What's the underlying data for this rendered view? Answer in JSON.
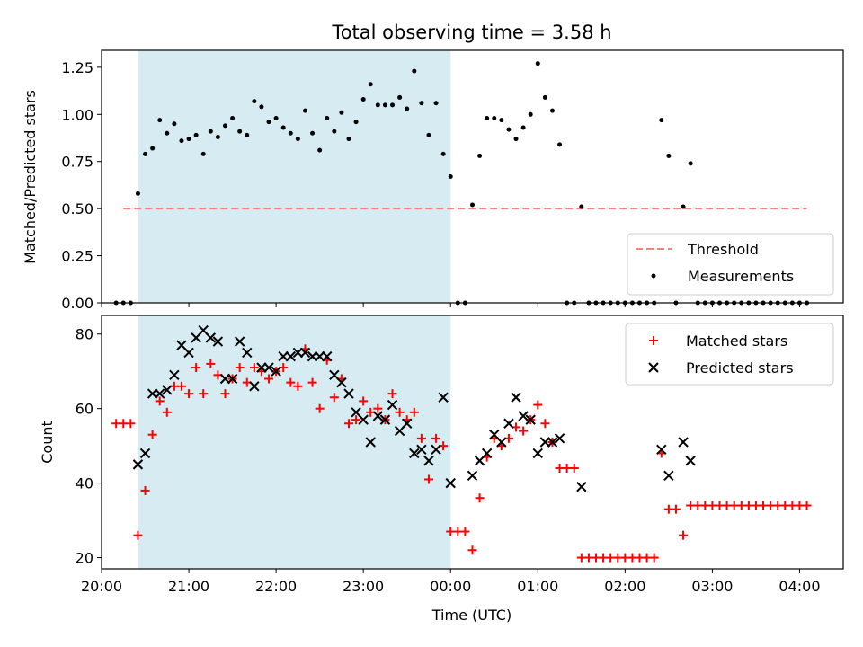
{
  "chart_data": [
    {
      "type": "scatter",
      "title": "Total observing time = 3.58 h",
      "ylabel": "Matched/Predicted stars",
      "ylim": [
        0,
        1.34
      ],
      "yticks": [
        "0.00",
        "0.25",
        "0.50",
        "0.75",
        "1.00",
        "1.25"
      ],
      "xlim": [
        "20:00",
        "04:30"
      ],
      "highlight_span": [
        "20:25",
        "00:00"
      ],
      "threshold": {
        "name": "Threshold",
        "value": 0.5,
        "x_range": [
          "20:15",
          "04:05"
        ],
        "color": "#ff7f7f"
      },
      "legend_position": "lower right",
      "series": [
        {
          "name": "Measurements",
          "color": "#000000",
          "points": [
            [
              "20:10",
              0.0
            ],
            [
              "20:15",
              0.0
            ],
            [
              "20:20",
              0.0
            ],
            [
              "20:25",
              0.58
            ],
            [
              "20:30",
              0.79
            ],
            [
              "20:35",
              0.82
            ],
            [
              "20:40",
              0.97
            ],
            [
              "20:45",
              0.9
            ],
            [
              "20:50",
              0.95
            ],
            [
              "20:55",
              0.86
            ],
            [
              "21:00",
              0.87
            ],
            [
              "21:05",
              0.89
            ],
            [
              "21:10",
              0.79
            ],
            [
              "21:15",
              0.91
            ],
            [
              "21:20",
              0.88
            ],
            [
              "21:25",
              0.94
            ],
            [
              "21:30",
              0.98
            ],
            [
              "21:35",
              0.91
            ],
            [
              "21:40",
              0.89
            ],
            [
              "21:45",
              1.07
            ],
            [
              "21:50",
              1.04
            ],
            [
              "21:55",
              0.96
            ],
            [
              "22:00",
              0.98
            ],
            [
              "22:05",
              0.93
            ],
            [
              "22:10",
              0.9
            ],
            [
              "22:15",
              0.87
            ],
            [
              "22:20",
              1.02
            ],
            [
              "22:25",
              0.9
            ],
            [
              "22:30",
              0.81
            ],
            [
              "22:35",
              0.98
            ],
            [
              "22:40",
              0.91
            ],
            [
              "22:45",
              1.01
            ],
            [
              "22:50",
              0.87
            ],
            [
              "22:55",
              0.96
            ],
            [
              "23:00",
              1.08
            ],
            [
              "23:05",
              1.16
            ],
            [
              "23:10",
              1.05
            ],
            [
              "23:15",
              1.05
            ],
            [
              "23:20",
              1.05
            ],
            [
              "23:25",
              1.09
            ],
            [
              "23:30",
              1.03
            ],
            [
              "23:35",
              1.23
            ],
            [
              "23:40",
              1.06
            ],
            [
              "23:45",
              0.89
            ],
            [
              "23:50",
              1.06
            ],
            [
              "23:55",
              0.79
            ],
            [
              "00:00",
              0.67
            ],
            [
              "00:05",
              0.0
            ],
            [
              "00:10",
              0.0
            ],
            [
              "00:15",
              0.52
            ],
            [
              "00:20",
              0.78
            ],
            [
              "00:25",
              0.98
            ],
            [
              "00:30",
              0.98
            ],
            [
              "00:35",
              0.97
            ],
            [
              "00:40",
              0.92
            ],
            [
              "00:45",
              0.87
            ],
            [
              "00:50",
              0.93
            ],
            [
              "00:55",
              1.0
            ],
            [
              "01:00",
              1.27
            ],
            [
              "01:05",
              1.09
            ],
            [
              "01:10",
              1.02
            ],
            [
              "01:15",
              0.84
            ],
            [
              "01:20",
              0.0
            ],
            [
              "01:25",
              0.0
            ],
            [
              "01:30",
              0.51
            ],
            [
              "01:35",
              0.0
            ],
            [
              "01:40",
              0.0
            ],
            [
              "01:45",
              0.0
            ],
            [
              "01:50",
              0.0
            ],
            [
              "01:55",
              0.0
            ],
            [
              "02:00",
              0.0
            ],
            [
              "02:05",
              0.0
            ],
            [
              "02:10",
              0.0
            ],
            [
              "02:15",
              0.0
            ],
            [
              "02:20",
              0.0
            ],
            [
              "02:25",
              0.97
            ],
            [
              "02:30",
              0.78
            ],
            [
              "02:35",
              0.0
            ],
            [
              "02:40",
              0.51
            ],
            [
              "02:45",
              0.74
            ],
            [
              "02:50",
              0.0
            ],
            [
              "02:55",
              0.0
            ],
            [
              "03:00",
              0.0
            ],
            [
              "03:05",
              0.0
            ],
            [
              "03:10",
              0.0
            ],
            [
              "03:15",
              0.0
            ],
            [
              "03:20",
              0.0
            ],
            [
              "03:25",
              0.0
            ],
            [
              "03:30",
              0.0
            ],
            [
              "03:35",
              0.0
            ],
            [
              "03:40",
              0.0
            ],
            [
              "03:45",
              0.0
            ],
            [
              "03:50",
              0.0
            ],
            [
              "03:55",
              0.0
            ],
            [
              "04:00",
              0.0
            ],
            [
              "04:05",
              0.0
            ]
          ]
        }
      ]
    },
    {
      "type": "scatter",
      "ylabel": "Count",
      "xlabel": "Time (UTC)",
      "ylim": [
        17,
        85
      ],
      "yticks": [
        "20",
        "40",
        "60",
        "80"
      ],
      "xlim": [
        "20:00",
        "04:30"
      ],
      "xticks": [
        "20:00",
        "21:00",
        "22:00",
        "23:00",
        "00:00",
        "01:00",
        "02:00",
        "03:00",
        "04:00"
      ],
      "highlight_span": [
        "20:25",
        "00:00"
      ],
      "legend_position": "upper right",
      "series": [
        {
          "name": "Matched stars",
          "marker": "+",
          "color": "#ff0000",
          "points": [
            [
              "20:10",
              56
            ],
            [
              "20:15",
              56
            ],
            [
              "20:20",
              56
            ],
            [
              "20:25",
              26
            ],
            [
              "20:30",
              38
            ],
            [
              "20:35",
              53
            ],
            [
              "20:40",
              62
            ],
            [
              "20:45",
              59
            ],
            [
              "20:50",
              66
            ],
            [
              "20:55",
              66
            ],
            [
              "21:00",
              64
            ],
            [
              "21:05",
              71
            ],
            [
              "21:10",
              64
            ],
            [
              "21:15",
              72
            ],
            [
              "21:20",
              69
            ],
            [
              "21:25",
              64
            ],
            [
              "21:30",
              68
            ],
            [
              "21:35",
              71
            ],
            [
              "21:40",
              67
            ],
            [
              "21:45",
              71
            ],
            [
              "21:50",
              70
            ],
            [
              "21:55",
              68
            ],
            [
              "22:00",
              70
            ],
            [
              "22:05",
              71
            ],
            [
              "22:10",
              67
            ],
            [
              "22:15",
              66
            ],
            [
              "22:20",
              76
            ],
            [
              "22:25",
              67
            ],
            [
              "22:30",
              60
            ],
            [
              "22:35",
              73
            ],
            [
              "22:40",
              63
            ],
            [
              "22:45",
              68
            ],
            [
              "22:50",
              56
            ],
            [
              "22:55",
              57
            ],
            [
              "23:00",
              62
            ],
            [
              "23:05",
              59
            ],
            [
              "23:10",
              60
            ],
            [
              "23:15",
              57
            ],
            [
              "23:20",
              64
            ],
            [
              "23:25",
              59
            ],
            [
              "23:30",
              57
            ],
            [
              "23:35",
              59
            ],
            [
              "23:40",
              52
            ],
            [
              "23:45",
              41
            ],
            [
              "23:50",
              52
            ],
            [
              "23:55",
              50
            ],
            [
              "00:00",
              27
            ],
            [
              "00:05",
              27
            ],
            [
              "00:10",
              27
            ],
            [
              "00:15",
              22
            ],
            [
              "00:20",
              36
            ],
            [
              "00:25",
              47
            ],
            [
              "00:30",
              52
            ],
            [
              "00:35",
              50
            ],
            [
              "00:40",
              52
            ],
            [
              "00:45",
              55
            ],
            [
              "00:50",
              54
            ],
            [
              "00:55",
              57
            ],
            [
              "01:00",
              61
            ],
            [
              "01:05",
              56
            ],
            [
              "01:10",
              51
            ],
            [
              "01:15",
              44
            ],
            [
              "01:20",
              44
            ],
            [
              "01:25",
              44
            ],
            [
              "01:30",
              20
            ],
            [
              "01:35",
              20
            ],
            [
              "01:40",
              20
            ],
            [
              "01:45",
              20
            ],
            [
              "01:50",
              20
            ],
            [
              "01:55",
              20
            ],
            [
              "02:00",
              20
            ],
            [
              "02:05",
              20
            ],
            [
              "02:10",
              20
            ],
            [
              "02:15",
              20
            ],
            [
              "02:20",
              20
            ],
            [
              "02:25",
              48
            ],
            [
              "02:30",
              33
            ],
            [
              "02:35",
              33
            ],
            [
              "02:40",
              26
            ],
            [
              "02:45",
              34
            ],
            [
              "02:50",
              34
            ],
            [
              "02:55",
              34
            ],
            [
              "03:00",
              34
            ],
            [
              "03:05",
              34
            ],
            [
              "03:10",
              34
            ],
            [
              "03:15",
              34
            ],
            [
              "03:20",
              34
            ],
            [
              "03:25",
              34
            ],
            [
              "03:30",
              34
            ],
            [
              "03:35",
              34
            ],
            [
              "03:40",
              34
            ],
            [
              "03:45",
              34
            ],
            [
              "03:50",
              34
            ],
            [
              "03:55",
              34
            ],
            [
              "04:00",
              34
            ],
            [
              "04:05",
              34
            ]
          ]
        },
        {
          "name": "Predicted stars",
          "marker": "x",
          "color": "#000000",
          "points": [
            [
              "20:25",
              45
            ],
            [
              "20:30",
              48
            ],
            [
              "20:35",
              64
            ],
            [
              "20:40",
              64
            ],
            [
              "20:45",
              65
            ],
            [
              "20:50",
              69
            ],
            [
              "20:55",
              77
            ],
            [
              "21:00",
              75
            ],
            [
              "21:05",
              79
            ],
            [
              "21:10",
              81
            ],
            [
              "21:15",
              79
            ],
            [
              "21:20",
              78
            ],
            [
              "21:25",
              68
            ],
            [
              "21:30",
              68
            ],
            [
              "21:35",
              78
            ],
            [
              "21:40",
              75
            ],
            [
              "21:45",
              66
            ],
            [
              "21:50",
              71
            ],
            [
              "21:55",
              71
            ],
            [
              "22:00",
              70
            ],
            [
              "22:05",
              74
            ],
            [
              "22:10",
              74
            ],
            [
              "22:15",
              75
            ],
            [
              "22:20",
              75
            ],
            [
              "22:25",
              74
            ],
            [
              "22:30",
              74
            ],
            [
              "22:35",
              74
            ],
            [
              "22:40",
              69
            ],
            [
              "22:45",
              67
            ],
            [
              "22:50",
              64
            ],
            [
              "22:55",
              59
            ],
            [
              "23:00",
              57
            ],
            [
              "23:05",
              51
            ],
            [
              "23:10",
              58
            ],
            [
              "23:15",
              57
            ],
            [
              "23:20",
              61
            ],
            [
              "23:25",
              54
            ],
            [
              "23:30",
              56
            ],
            [
              "23:35",
              48
            ],
            [
              "23:40",
              49
            ],
            [
              "23:45",
              46
            ],
            [
              "23:50",
              49
            ],
            [
              "23:55",
              63
            ],
            [
              "00:00",
              40
            ],
            [
              "00:15",
              42
            ],
            [
              "00:20",
              46
            ],
            [
              "00:25",
              48
            ],
            [
              "00:30",
              53
            ],
            [
              "00:35",
              51
            ],
            [
              "00:40",
              56
            ],
            [
              "00:45",
              63
            ],
            [
              "00:50",
              58
            ],
            [
              "00:55",
              57
            ],
            [
              "01:00",
              48
            ],
            [
              "01:05",
              51
            ],
            [
              "01:10",
              51
            ],
            [
              "01:15",
              52
            ],
            [
              "01:30",
              39
            ],
            [
              "02:25",
              49
            ],
            [
              "02:30",
              42
            ],
            [
              "02:40",
              51
            ],
            [
              "02:45",
              46
            ]
          ]
        }
      ]
    }
  ]
}
